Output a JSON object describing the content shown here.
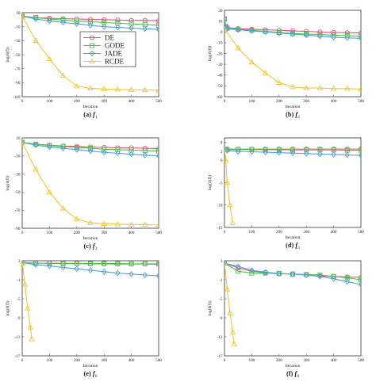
{
  "colors": {
    "DE": "#e8507a",
    "GODE": "#44c244",
    "JADE": "#4e9fe0",
    "RCDE": "#f2c531",
    "axis": "#333333",
    "grid_tick": "#555555"
  },
  "legend": {
    "entries": [
      "DE",
      "GODE",
      "JADE",
      "RCDE"
    ],
    "placement": "inside-right",
    "in_chart": 0
  },
  "chart_data": [
    {
      "type": "line",
      "caption_label": "(a)",
      "caption_func": "f",
      "caption_sub": "1",
      "xlabel": "Iteration",
      "ylabel": "log(δ(f))",
      "xlim": [
        0,
        500
      ],
      "ylim": [
        -110,
        10
      ],
      "xticks": [
        0,
        100,
        200,
        300,
        400,
        500
      ],
      "yticks": [
        10,
        -10,
        -30,
        -50,
        -70,
        -90,
        -110
      ],
      "series": [
        {
          "name": "DE",
          "x": [
            0,
            50,
            100,
            150,
            200,
            250,
            300,
            350,
            400,
            450,
            500
          ],
          "y": [
            5,
            3,
            2,
            1.5,
            1,
            0.5,
            0,
            -0.5,
            -1,
            -1,
            -1.5
          ]
        },
        {
          "name": "GODE",
          "x": [
            0,
            50,
            100,
            150,
            200,
            250,
            300,
            350,
            400,
            450,
            500
          ],
          "y": [
            5,
            3,
            1,
            -0.5,
            -2,
            -3,
            -4,
            -5,
            -6,
            -7,
            -8
          ]
        },
        {
          "name": "JADE",
          "x": [
            0,
            50,
            100,
            150,
            200,
            250,
            300,
            350,
            400,
            450,
            500
          ],
          "y": [
            5,
            1,
            -2,
            -4,
            -6,
            -8,
            -10,
            -11,
            -12,
            -13,
            -14
          ]
        },
        {
          "name": "RCDE",
          "x": [
            0,
            50,
            100,
            150,
            200,
            250,
            300,
            350,
            400,
            450,
            500
          ],
          "y": [
            5,
            -30,
            -56,
            -80,
            -95,
            -98,
            -99,
            -99.5,
            -100,
            -100.5,
            -101
          ]
        }
      ]
    },
    {
      "type": "line",
      "caption_label": "(b)",
      "caption_func": "f",
      "caption_sub": "2",
      "xlabel": "Iteration",
      "ylabel": "log(δ(f))",
      "xlim": [
        0,
        500
      ],
      "ylim": [
        -60,
        20
      ],
      "xticks": [
        0,
        100,
        200,
        300,
        400,
        500
      ],
      "yticks": [
        20,
        10,
        0,
        -10,
        -20,
        -30,
        -40,
        -50,
        -60
      ],
      "series": [
        {
          "name": "DE",
          "x": [
            0,
            5,
            10,
            50,
            100,
            150,
            200,
            250,
            300,
            350,
            400,
            450,
            500
          ],
          "y": [
            12,
            5,
            4,
            3,
            2.5,
            2,
            1.5,
            1,
            0.5,
            0,
            -0.5,
            -0.8,
            -1
          ]
        },
        {
          "name": "GODE",
          "x": [
            0,
            5,
            10,
            50,
            100,
            150,
            200,
            250,
            300,
            350,
            400,
            450,
            500
          ],
          "y": [
            12,
            5,
            3.5,
            2.5,
            1.5,
            0.5,
            -0.5,
            -1.5,
            -2,
            -2.5,
            -3,
            -3.5,
            -4
          ]
        },
        {
          "name": "JADE",
          "x": [
            0,
            5,
            10,
            50,
            100,
            150,
            200,
            250,
            300,
            350,
            400,
            450,
            500
          ],
          "y": [
            12,
            4,
            3,
            2,
            1,
            0,
            -1,
            -2,
            -3,
            -4,
            -5,
            -5.5,
            -6
          ]
        },
        {
          "name": "RCDE",
          "x": [
            0,
            50,
            100,
            150,
            200,
            250,
            300,
            350,
            400,
            450,
            500
          ],
          "y": [
            3,
            -15,
            -28,
            -38,
            -47,
            -51,
            -52,
            -52,
            -52.5,
            -52.5,
            -53
          ]
        }
      ]
    },
    {
      "type": "line",
      "caption_label": "(c)",
      "caption_func": "f",
      "caption_sub": "3",
      "xlabel": "Iteration",
      "ylabel": "log(δ(f))",
      "xlim": [
        0,
        500
      ],
      "ylim": [
        -90,
        10
      ],
      "xticks": [
        0,
        100,
        200,
        300,
        400,
        500
      ],
      "yticks": [
        10,
        -10,
        -30,
        -50,
        -70,
        -90
      ],
      "series": [
        {
          "name": "DE",
          "x": [
            0,
            50,
            100,
            150,
            200,
            250,
            300,
            350,
            400,
            450,
            500
          ],
          "y": [
            5,
            3,
            2,
            1,
            0.5,
            0,
            -0.5,
            -1,
            -1,
            -1.5,
            -2
          ]
        },
        {
          "name": "GODE",
          "x": [
            0,
            50,
            100,
            150,
            200,
            250,
            300,
            350,
            400,
            450,
            500
          ],
          "y": [
            5,
            3,
            1.5,
            0.5,
            -0.5,
            -1.5,
            -2.5,
            -3,
            -3.5,
            -4,
            -4.5
          ]
        },
        {
          "name": "JADE",
          "x": [
            0,
            50,
            100,
            150,
            200,
            250,
            300,
            350,
            400,
            450,
            500
          ],
          "y": [
            5,
            2,
            0,
            -1.5,
            -3,
            -4.5,
            -6,
            -7,
            -8,
            -9,
            -10
          ]
        },
        {
          "name": "RCDE",
          "x": [
            0,
            50,
            100,
            150,
            200,
            250,
            300,
            350,
            400,
            450,
            500
          ],
          "y": [
            5,
            -25,
            -50,
            -68,
            -80,
            -84,
            -85,
            -85.5,
            -86,
            -86,
            -86.5
          ]
        }
      ]
    },
    {
      "type": "line",
      "caption_label": "(d)",
      "caption_func": "f",
      "caption_sub": "5",
      "xlabel": "Iteration",
      "ylabel": "log(δ(f))",
      "xlim": [
        0,
        500
      ],
      "ylim": [
        -15,
        5
      ],
      "xticks": [
        0,
        100,
        200,
        300,
        400,
        500
      ],
      "yticks": [
        4,
        2,
        0,
        -5,
        -10,
        -15
      ],
      "series": [
        {
          "name": "DE",
          "x": [
            0,
            10,
            50,
            100,
            150,
            200,
            250,
            300,
            350,
            400,
            450,
            500
          ],
          "y": [
            2.5,
            2.5,
            2.5,
            2.5,
            2.5,
            2.5,
            2.5,
            2.5,
            2.5,
            2.5,
            2.5,
            2.5
          ]
        },
        {
          "name": "GODE",
          "x": [
            0,
            10,
            50,
            100,
            150,
            200,
            250,
            300,
            350,
            400,
            450,
            500
          ],
          "y": [
            2.5,
            2.4,
            2.4,
            2.4,
            2.35,
            2.35,
            2.3,
            2.3,
            2.3,
            2.3,
            2.25,
            2.25
          ]
        },
        {
          "name": "JADE",
          "x": [
            0,
            10,
            50,
            100,
            150,
            200,
            250,
            300,
            350,
            400,
            450,
            500
          ],
          "y": [
            2.5,
            2.2,
            2.0,
            1.9,
            1.8,
            1.7,
            1.6,
            1.5,
            1.4,
            1.3,
            1.2,
            1.1
          ]
        },
        {
          "name": "RCDE",
          "x": [
            0,
            5,
            10,
            20,
            30
          ],
          "y": [
            2.5,
            0,
            -5,
            -10,
            -14
          ]
        }
      ]
    },
    {
      "type": "line",
      "caption_label": "(e)",
      "caption_func": "f",
      "caption_sub": "6",
      "xlabel": "Iteration",
      "ylabel": "log(δ(f))",
      "xlim": [
        0,
        500
      ],
      "ylim": [
        -17,
        3
      ],
      "xticks": [
        0,
        100,
        200,
        300,
        400,
        500
      ],
      "yticks": [
        3,
        -1,
        -5,
        -9,
        -13,
        -17
      ],
      "series": [
        {
          "name": "DE",
          "x": [
            0,
            50,
            100,
            150,
            200,
            250,
            300,
            350,
            400,
            450,
            500
          ],
          "y": [
            2.6,
            2.5,
            2.45,
            2.4,
            2.4,
            2.35,
            2.35,
            2.3,
            2.3,
            2.3,
            2.25
          ]
        },
        {
          "name": "GODE",
          "x": [
            0,
            50,
            100,
            150,
            200,
            250,
            300,
            350,
            400,
            450,
            500
          ],
          "y": [
            2.6,
            2.5,
            2.5,
            2.45,
            2.45,
            2.4,
            2.4,
            2.4,
            2.35,
            2.35,
            2.35
          ]
        },
        {
          "name": "JADE",
          "x": [
            0,
            50,
            100,
            150,
            200,
            250,
            300,
            350,
            400,
            450,
            500
          ],
          "y": [
            2.6,
            2.2,
            1.9,
            1.6,
            1.3,
            1.0,
            0.7,
            0.4,
            0.2,
            0.0,
            -0.2
          ]
        },
        {
          "name": "RCDE",
          "x": [
            0,
            10,
            20,
            30,
            35
          ],
          "y": [
            2.6,
            -2,
            -7,
            -11,
            -13.5
          ]
        }
      ]
    },
    {
      "type": "line",
      "caption_label": "(f)",
      "caption_func": "f",
      "caption_sub": "8",
      "xlabel": "Iteration",
      "ylabel": "log(δ(f))",
      "xlim": [
        0,
        500
      ],
      "ylim": [
        -17,
        3
      ],
      "xticks": [
        0,
        100,
        200,
        300,
        400,
        500
      ],
      "yticks": [
        3,
        -1,
        -5,
        -9,
        -13,
        -17
      ],
      "series": [
        {
          "name": "DE",
          "x": [
            0,
            50,
            100,
            150,
            200,
            250,
            300,
            350,
            400,
            450,
            500
          ],
          "y": [
            2.5,
            1.5,
            0.8,
            0.5,
            0.3,
            0.2,
            0.0,
            -0.2,
            -0.3,
            -0.4,
            -0.5
          ]
        },
        {
          "name": "GODE",
          "x": [
            0,
            50,
            100,
            150,
            200,
            250,
            300,
            350,
            400,
            450,
            500
          ],
          "y": [
            2.5,
            0.8,
            0.4,
            0.4,
            0.3,
            0.2,
            0.1,
            0.0,
            -0.3,
            -0.6,
            -1.0
          ]
        },
        {
          "name": "JADE",
          "x": [
            0,
            50,
            100,
            150,
            200,
            250,
            300,
            350,
            400,
            450,
            500
          ],
          "y": [
            2.5,
            1.8,
            1.0,
            0.6,
            0.3,
            0.2,
            0.0,
            -0.3,
            -0.8,
            -1.4,
            -2.0
          ]
        },
        {
          "name": "RCDE",
          "x": [
            0,
            10,
            20,
            30,
            35
          ],
          "y": [
            2.5,
            -3,
            -8,
            -12,
            -14.5
          ]
        }
      ]
    }
  ]
}
